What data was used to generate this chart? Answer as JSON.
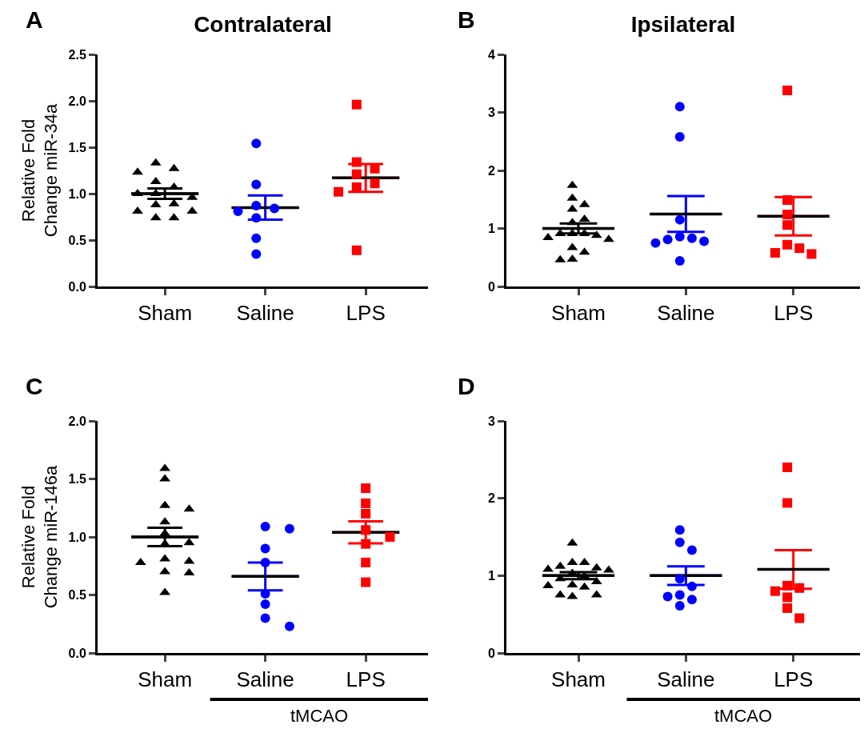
{
  "chart_data": [
    {
      "type": "scatter",
      "title": "Contralateral",
      "ylabel": "Relative Fold\nChange miR-34a",
      "annotations": [
        "A"
      ],
      "categories": [
        "Sham",
        "Saline",
        "LPS"
      ],
      "ylim": [
        0,
        2.5
      ],
      "yticks": [
        {
          "value": 0,
          "label": "0.0"
        },
        {
          "value": 0.5,
          "label": "0.5"
        },
        {
          "value": 1,
          "label": "1.0"
        },
        {
          "value": 1.5,
          "label": "1.5"
        },
        {
          "value": 2,
          "label": "2.0"
        },
        {
          "value": 2.5,
          "label": "2.5"
        }
      ],
      "grid": false,
      "series": [
        {
          "color": "#000000",
          "marker": "triangle",
          "x": [
            "Sham",
            "Sham",
            "Sham",
            "Sham",
            "Sham",
            "Sham",
            "Sham",
            "Sham",
            "Sham",
            "Sham",
            "Sham",
            "Sham",
            "Sham",
            "Sham"
          ],
          "values": [
            1.33,
            1.27,
            1.23,
            1.13,
            1.07,
            1.0,
            1.0,
            0.96,
            0.89,
            0.88,
            0.81,
            0.81,
            0.74,
            0.74
          ]
        },
        {
          "color": "#0000ff",
          "marker": "circle",
          "x": [
            "Saline",
            "Saline",
            "Saline",
            "Saline",
            "Saline",
            "Saline",
            "Saline",
            "Saline"
          ],
          "values": [
            1.54,
            1.1,
            0.87,
            0.84,
            0.81,
            0.74,
            0.52,
            0.35
          ]
        },
        {
          "color": "#ff0000",
          "marker": "square",
          "x": [
            "LPS",
            "LPS",
            "LPS",
            "LPS",
            "LPS",
            "LPS",
            "LPS",
            "LPS"
          ],
          "values": [
            1.96,
            1.34,
            1.27,
            1.21,
            1.11,
            1.07,
            1.02,
            0.39
          ]
        },
        {
          "type": "box",
          "colors": [
            "#000000",
            "#0000ff",
            "#ff0000"
          ],
          "boxes": [
            {
              "low": 0.945,
              "q1": 1.0,
              "median": 1.0,
              "q3": 1.0,
              "high": 1.055
            },
            {
              "low": 0.72,
              "q1": 0.85,
              "median": 0.85,
              "q3": 0.85,
              "high": 0.98
            },
            {
              "low": 1.02,
              "q1": 1.17,
              "median": 1.17,
              "q3": 1.17,
              "high": 1.32
            }
          ]
        }
      ]
    },
    {
      "type": "scatter",
      "title": "Ipsilateral",
      "annotations": [
        "B"
      ],
      "categories": [
        "Sham",
        "Saline",
        "LPS"
      ],
      "ylim": [
        0,
        4
      ],
      "yticks": [
        0,
        1,
        2,
        3,
        4
      ],
      "grid": false,
      "series": [
        {
          "color": "#000000",
          "marker": "triangle",
          "x": [
            "Sham",
            "Sham",
            "Sham",
            "Sham",
            "Sham",
            "Sham",
            "Sham",
            "Sham",
            "Sham",
            "Sham",
            "Sham",
            "Sham",
            "Sham",
            "Sham",
            "Sham",
            "Sham"
          ],
          "values": [
            1.74,
            1.52,
            1.41,
            1.33,
            1.16,
            1.1,
            0.91,
            0.91,
            0.91,
            0.88,
            0.84,
            0.81,
            0.67,
            0.59,
            0.47,
            0.46
          ]
        },
        {
          "color": "#0000ff",
          "marker": "circle",
          "x": [
            "Saline",
            "Saline",
            "Saline",
            "Saline",
            "Saline",
            "Saline",
            "Saline",
            "Saline",
            "Saline"
          ],
          "values": [
            3.1,
            2.58,
            1.15,
            0.86,
            0.83,
            0.81,
            0.78,
            0.75,
            0.44
          ]
        },
        {
          "color": "#ff0000",
          "marker": "square",
          "x": [
            "LPS",
            "LPS",
            "LPS",
            "LPS",
            "LPS",
            "LPS",
            "LPS",
            "LPS"
          ],
          "values": [
            3.38,
            1.49,
            1.24,
            1.06,
            0.72,
            0.66,
            0.58,
            0.56
          ]
        },
        {
          "type": "box",
          "colors": [
            "#000000",
            "#0000ff",
            "#ff0000"
          ],
          "boxes": [
            {
              "low": 0.915,
              "q1": 1.0,
              "median": 1.0,
              "q3": 1.0,
              "high": 1.085
            },
            {
              "low": 0.94,
              "q1": 1.25,
              "median": 1.25,
              "q3": 1.25,
              "high": 1.56
            },
            {
              "low": 0.88,
              "q1": 1.21,
              "median": 1.21,
              "q3": 1.21,
              "high": 1.54
            }
          ]
        }
      ]
    },
    {
      "type": "scatter",
      "ylabel": "Relative Fold\nChange miR-146a",
      "annotations": [
        "C",
        "tMCAO"
      ],
      "categories": [
        "Sham",
        "Saline",
        "LPS"
      ],
      "ylim": [
        0,
        2
      ],
      "yticks": [
        {
          "value": 0,
          "label": "0.0"
        },
        {
          "value": 0.5,
          "label": "0.5"
        },
        {
          "value": 1,
          "label": "1.0"
        },
        {
          "value": 1.5,
          "label": "1.5"
        },
        {
          "value": 2,
          "label": "2.0"
        }
      ],
      "grid": false,
      "series": [
        {
          "color": "#000000",
          "marker": "triangle",
          "x": [
            "Sham",
            "Sham",
            "Sham",
            "Sham",
            "Sham",
            "Sham",
            "Sham",
            "Sham",
            "Sham",
            "Sham",
            "Sham",
            "Sham",
            "Sham",
            "Sham"
          ],
          "values": [
            1.59,
            1.5,
            1.27,
            1.24,
            1.13,
            1.03,
            0.95,
            0.94,
            0.81,
            0.79,
            0.78,
            0.7,
            0.69,
            0.52
          ]
        },
        {
          "color": "#0000ff",
          "marker": "circle",
          "x": [
            "Saline",
            "Saline",
            "Saline",
            "Saline",
            "Saline",
            "Saline",
            "Saline",
            "Saline"
          ],
          "values": [
            1.09,
            1.07,
            0.9,
            0.78,
            0.51,
            0.42,
            0.3,
            0.23
          ]
        },
        {
          "color": "#ff0000",
          "marker": "square",
          "x": [
            "LPS",
            "LPS",
            "LPS",
            "LPS",
            "LPS",
            "LPS",
            "LPS",
            "LPS"
          ],
          "values": [
            1.42,
            1.29,
            1.2,
            1.06,
            1.0,
            0.94,
            0.78,
            0.61
          ]
        },
        {
          "type": "box",
          "colors": [
            "#000000",
            "#0000ff",
            "#ff0000"
          ],
          "boxes": [
            {
              "low": 0.92,
              "q1": 1.0,
              "median": 1.0,
              "q3": 1.0,
              "high": 1.08
            },
            {
              "low": 0.54,
              "q1": 0.66,
              "median": 0.66,
              "q3": 0.66,
              "high": 0.78
            },
            {
              "low": 0.945,
              "q1": 1.04,
              "median": 1.04,
              "q3": 1.04,
              "high": 1.135
            }
          ]
        }
      ]
    },
    {
      "type": "scatter",
      "annotations": [
        "D",
        "tMCAO"
      ],
      "categories": [
        "Sham",
        "Saline",
        "LPS"
      ],
      "ylim": [
        0,
        3
      ],
      "yticks": [
        0,
        1,
        2,
        3
      ],
      "grid": false,
      "series": [
        {
          "color": "#000000",
          "marker": "triangle",
          "x": [
            "Sham",
            "Sham",
            "Sham",
            "Sham",
            "Sham",
            "Sham",
            "Sham",
            "Sham",
            "Sham",
            "Sham",
            "Sham",
            "Sham",
            "Sham",
            "Sham",
            "Sham",
            "Sham",
            "Sham"
          ],
          "values": [
            1.42,
            1.17,
            1.17,
            1.12,
            1.1,
            1.08,
            1.07,
            1.03,
            0.99,
            0.96,
            0.92,
            0.88,
            0.87,
            0.85,
            0.75,
            0.75,
            0.73
          ]
        },
        {
          "color": "#0000ff",
          "marker": "circle",
          "x": [
            "Saline",
            "Saline",
            "Saline",
            "Saline",
            "Saline",
            "Saline",
            "Saline",
            "Saline",
            "Saline"
          ],
          "values": [
            1.59,
            1.43,
            1.33,
            0.96,
            0.86,
            0.75,
            0.73,
            0.69,
            0.61
          ]
        },
        {
          "color": "#ff0000",
          "marker": "square",
          "x": [
            "LPS",
            "LPS",
            "LPS",
            "LPS",
            "LPS",
            "LPS",
            "LPS",
            "LPS"
          ],
          "values": [
            2.4,
            1.94,
            0.87,
            0.84,
            0.8,
            0.72,
            0.58,
            0.45
          ]
        },
        {
          "type": "box",
          "colors": [
            "#000000",
            "#0000ff",
            "#ff0000"
          ],
          "boxes": [
            {
              "low": 0.955,
              "q1": 1.0,
              "median": 1.0,
              "q3": 1.0,
              "high": 1.045
            },
            {
              "low": 0.88,
              "q1": 1.0,
              "median": 1.0,
              "q3": 1.0,
              "high": 1.12
            },
            {
              "low": 0.83,
              "q1": 1.08,
              "median": 1.08,
              "q3": 1.08,
              "high": 1.33
            }
          ]
        }
      ]
    }
  ]
}
